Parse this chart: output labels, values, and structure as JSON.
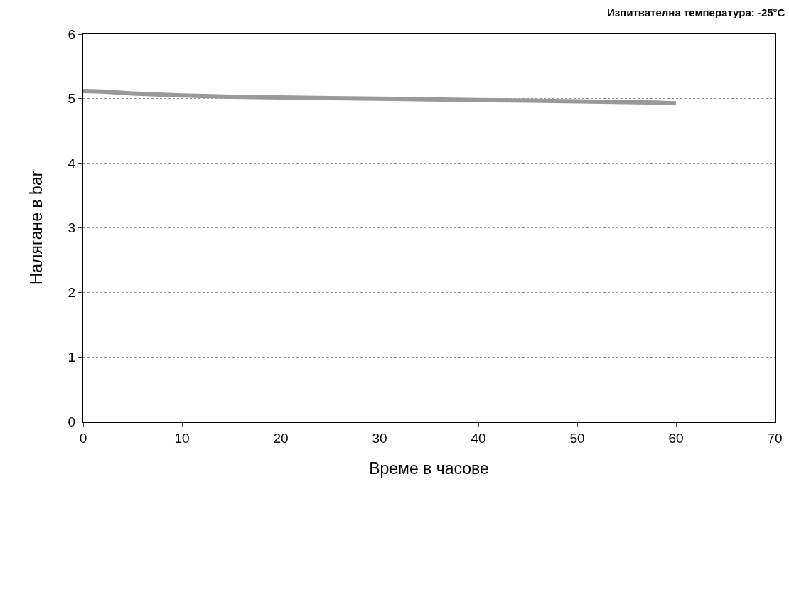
{
  "chart_data": {
    "type": "line",
    "title": "Изпитвателна температура: -25°C",
    "xlabel": "Време в часове",
    "ylabel": "Налягане в bar",
    "x": [
      0,
      2,
      5,
      10,
      15,
      20,
      25,
      30,
      35,
      40,
      45,
      50,
      55,
      58,
      60
    ],
    "series": [
      {
        "color": "#999999",
        "values": [
          5.12,
          5.11,
          5.08,
          5.05,
          5.03,
          5.02,
          5.01,
          5.0,
          4.99,
          4.98,
          4.97,
          4.96,
          4.95,
          4.94,
          4.93
        ]
      }
    ],
    "xlim": [
      0,
      70
    ],
    "xticks": [
      0,
      10,
      20,
      30,
      40,
      50,
      60,
      70
    ],
    "ylim": [
      0,
      6
    ],
    "yticks": [
      0,
      1,
      2,
      3,
      4,
      5,
      6
    ],
    "grid": "y",
    "marker": "none",
    "line_style": "solid"
  }
}
